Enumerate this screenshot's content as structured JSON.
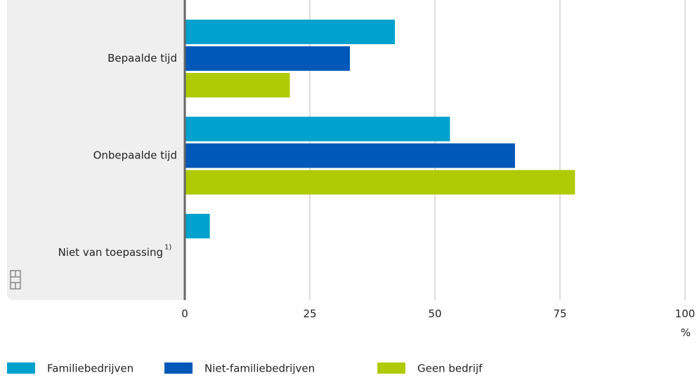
{
  "chart_data": {
    "type": "barh",
    "categories": [
      "Bepaalde tijd",
      "Onbepaalde tijd",
      "Niet van toepassing"
    ],
    "category_notes": [
      null,
      null,
      "1)"
    ],
    "series": [
      {
        "name": "Familiebedrijven",
        "color": "#00a1cd",
        "values": [
          42,
          53,
          5
        ]
      },
      {
        "name": "Niet-familiebedrijven",
        "color": "#0058b8",
        "values": [
          33,
          66,
          0
        ]
      },
      {
        "name": "Geen bedrijf",
        "color": "#afcb05",
        "values": [
          21,
          78,
          0
        ]
      }
    ],
    "xlim": [
      0,
      100
    ],
    "xticks": [
      0,
      25,
      50,
      75,
      100
    ],
    "x_unit": "%",
    "grid": true
  }
}
